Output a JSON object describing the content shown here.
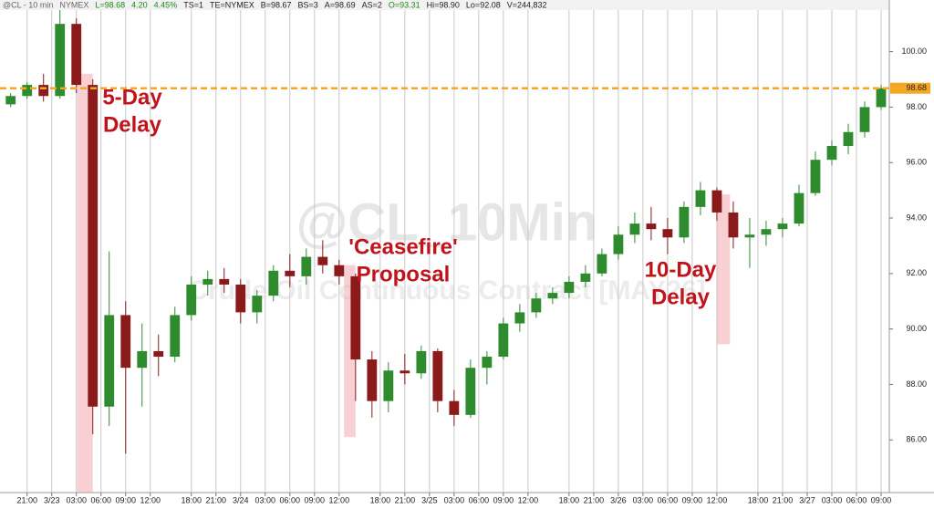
{
  "chart_data": {
    "type": "candlestick",
    "header": [
      {
        "text": "@CL - 10 min",
        "color": "#666666"
      },
      {
        "text": "NYMEX",
        "color": "#666666"
      },
      {
        "text": "L=98.68",
        "color": "#1a8a1a"
      },
      {
        "text": "4.20",
        "color": "#1a8a1a"
      },
      {
        "text": "4.45%",
        "color": "#1a8a1a"
      },
      {
        "text": "TS=1",
        "color": "#222222"
      },
      {
        "text": "TE=NYMEX",
        "color": "#222222"
      },
      {
        "text": "B=98.67",
        "color": "#222222"
      },
      {
        "text": "BS=3",
        "color": "#222222"
      },
      {
        "text": "A=98.69",
        "color": "#222222"
      },
      {
        "text": "AS=2",
        "color": "#222222"
      },
      {
        "text": "O=93.31",
        "color": "#1a8a1a"
      },
      {
        "text": "Hi=98.90",
        "color": "#222222"
      },
      {
        "text": "Lo=92.08",
        "color": "#222222"
      },
      {
        "text": "V=244,832",
        "color": "#222222"
      }
    ],
    "watermark": "@CL_10Min",
    "watermark_sub": "Crude Oil Continuous Contract [MAY26]",
    "up_color": "#2e8b2e",
    "down_color": "#8b1a1a",
    "x": [
      -2,
      0,
      2,
      4,
      6,
      8,
      10,
      12,
      14,
      16,
      18,
      20,
      22,
      24,
      26,
      28,
      30,
      32,
      34,
      36,
      38,
      40,
      42,
      44,
      46,
      48,
      50,
      52,
      54,
      56,
      58,
      60,
      62,
      64,
      66,
      68,
      70,
      72,
      74,
      76,
      78,
      80,
      82,
      84,
      86,
      88,
      90,
      92,
      94,
      96,
      98,
      100,
      102,
      104
    ],
    "open": [
      98.1,
      98.4,
      98.8,
      98.4,
      101.0,
      98.8,
      87.2,
      90.5,
      88.6,
      89.2,
      89.0,
      90.5,
      91.6,
      91.8,
      91.6,
      90.6,
      91.2,
      92.1,
      91.9,
      92.6,
      92.3,
      91.9,
      88.9,
      87.4,
      88.5,
      88.4,
      89.2,
      87.4,
      86.9,
      88.6,
      89.0,
      90.2,
      90.6,
      91.1,
      91.3,
      91.7,
      92.0,
      92.7,
      93.4,
      93.8,
      93.6,
      93.3,
      94.4,
      95.0,
      94.2,
      93.3,
      93.4,
      93.6,
      93.8,
      94.9,
      96.1,
      96.6,
      97.1,
      98.0
    ],
    "high": [
      98.5,
      98.9,
      99.2,
      101.5,
      101.2,
      99.0,
      92.8,
      91.0,
      90.2,
      89.8,
      90.8,
      91.9,
      92.1,
      92.2,
      91.8,
      91.4,
      92.3,
      92.7,
      92.9,
      93.2,
      92.5,
      92.0,
      89.2,
      88.8,
      89.1,
      89.4,
      89.3,
      87.8,
      88.9,
      89.2,
      90.4,
      90.9,
      91.3,
      91.5,
      91.9,
      92.3,
      92.9,
      93.7,
      94.2,
      94.4,
      94.0,
      94.6,
      95.3,
      95.1,
      94.6,
      94.0,
      93.9,
      94.0,
      95.2,
      96.4,
      96.8,
      97.4,
      98.2,
      98.8
    ],
    "low": [
      98.0,
      98.3,
      98.2,
      98.3,
      98.5,
      86.2,
      86.5,
      85.5,
      87.2,
      88.3,
      88.8,
      90.3,
      91.2,
      91.3,
      90.2,
      90.2,
      91.0,
      91.5,
      91.6,
      92.0,
      91.6,
      87.4,
      86.8,
      87.0,
      88.0,
      88.2,
      87.0,
      86.5,
      86.8,
      88.0,
      88.9,
      89.9,
      90.4,
      90.9,
      91.1,
      91.5,
      91.9,
      92.5,
      93.1,
      93.2,
      92.7,
      93.1,
      94.1,
      93.9,
      92.9,
      92.2,
      93.0,
      93.3,
      93.7,
      94.8,
      95.9,
      96.3,
      96.9,
      97.9
    ],
    "close": [
      98.4,
      98.8,
      98.4,
      101.0,
      98.8,
      87.2,
      90.5,
      88.6,
      89.2,
      89.0,
      90.5,
      91.6,
      91.8,
      91.6,
      90.6,
      91.2,
      92.1,
      91.9,
      92.6,
      92.3,
      91.9,
      88.9,
      87.4,
      88.5,
      88.4,
      89.2,
      87.4,
      86.9,
      88.6,
      89.0,
      90.2,
      90.6,
      91.1,
      91.3,
      91.7,
      92.0,
      92.7,
      93.4,
      93.8,
      93.6,
      93.3,
      94.4,
      95.0,
      94.2,
      93.3,
      93.4,
      93.6,
      93.8,
      94.9,
      96.1,
      96.6,
      97.1,
      98.0,
      98.68
    ],
    "xlim": [
      -3.3,
      105
    ],
    "xticks": [
      {
        "value": 0,
        "label": "21:00"
      },
      {
        "value": 3,
        "label": "3/23"
      },
      {
        "value": 6,
        "label": "03:00"
      },
      {
        "value": 9,
        "label": "06:00"
      },
      {
        "value": 12,
        "label": "09:00"
      },
      {
        "value": 15,
        "label": "12:00"
      },
      {
        "value": 20,
        "label": "18:00"
      },
      {
        "value": 23,
        "label": "21:00"
      },
      {
        "value": 26,
        "label": "3/24"
      },
      {
        "value": 29,
        "label": "03:00"
      },
      {
        "value": 32,
        "label": "06:00"
      },
      {
        "value": 35,
        "label": "09:00"
      },
      {
        "value": 38,
        "label": "12:00"
      },
      {
        "value": 43,
        "label": "18:00"
      },
      {
        "value": 46,
        "label": "21:00"
      },
      {
        "value": 49,
        "label": "3/25"
      },
      {
        "value": 52,
        "label": "03:00"
      },
      {
        "value": 55,
        "label": "06:00"
      },
      {
        "value": 58,
        "label": "09:00"
      },
      {
        "value": 61,
        "label": "12:00"
      },
      {
        "value": 66,
        "label": "18:00"
      },
      {
        "value": 69,
        "label": "21:00"
      },
      {
        "value": 72,
        "label": "3/26"
      },
      {
        "value": 75,
        "label": "03:00"
      },
      {
        "value": 78,
        "label": "06:00"
      },
      {
        "value": 81,
        "label": "09:00"
      },
      {
        "value": 84,
        "label": "12:00"
      },
      {
        "value": 89,
        "label": "18:00"
      },
      {
        "value": 92,
        "label": "21:00"
      },
      {
        "value": 95,
        "label": "3/27"
      },
      {
        "value": 98,
        "label": "03:00"
      },
      {
        "value": 101,
        "label": "06:00"
      },
      {
        "value": 104,
        "label": "09:00"
      }
    ],
    "ylim": [
      84.1,
      101.5
    ],
    "yticks": [
      {
        "value": 86,
        "label": "86.00"
      },
      {
        "value": 88,
        "label": "88.00"
      },
      {
        "value": 90,
        "label": "90.00"
      },
      {
        "value": 92,
        "label": "92.00"
      },
      {
        "value": 94,
        "label": "94.00"
      },
      {
        "value": 96,
        "label": "96.00"
      },
      {
        "value": 98,
        "label": "98.00"
      },
      {
        "value": 100,
        "label": "100.00"
      }
    ],
    "reference_line": {
      "value": 98.68,
      "label": "98.68",
      "color": "#f5a623"
    },
    "highlights": [
      {
        "x": [
          6.1,
          8
        ],
        "y": [
          84.1,
          99.2
        ]
      },
      {
        "x": [
          38.6,
          40
        ],
        "y": [
          86.1,
          92.3
        ]
      },
      {
        "x": [
          84,
          85.6
        ],
        "y": [
          89.45,
          94.85
        ]
      }
    ],
    "annotations": [
      {
        "lines": [
          "5-Day",
          "Delay"
        ]
      },
      {
        "lines": [
          "'Ceasefire'",
          "Proposal"
        ]
      },
      {
        "lines": [
          "10-Day",
          "Delay"
        ]
      }
    ],
    "annotation_color": "#c0141c"
  }
}
